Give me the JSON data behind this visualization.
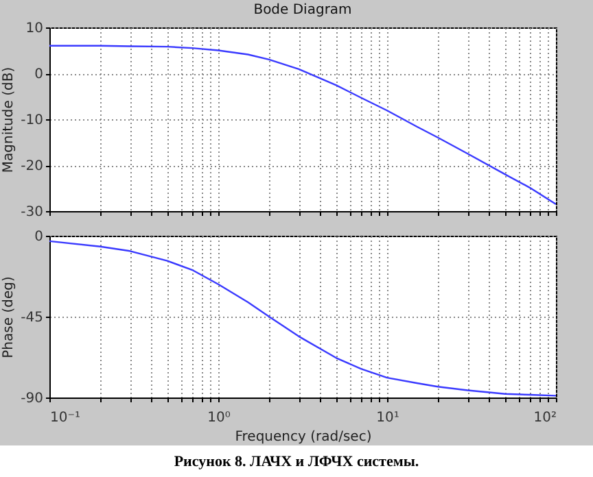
{
  "chart_data": [
    {
      "type": "line",
      "title": "Bode Diagram",
      "ylabel": "Magnitude (dB)",
      "x": [
        0.1,
        0.2,
        0.3,
        0.5,
        0.7,
        1,
        1.5,
        2,
        3,
        5,
        7,
        10,
        15,
        20,
        30,
        50,
        70,
        100
      ],
      "series": [
        {
          "color": "#3a3aff",
          "values": [
            6,
            6,
            5.9,
            5.8,
            5.5,
            5,
            4.1,
            3,
            0.9,
            -2.6,
            -5.3,
            -8.1,
            -11.6,
            -14,
            -17.5,
            -22,
            -24.9,
            -28.5
          ]
        }
      ],
      "log": "x",
      "xlim": [
        0.1,
        100
      ],
      "ylim": [
        -30,
        10
      ],
      "yticks": [
        -30,
        -20,
        -10,
        0,
        10
      ],
      "xticks": [
        {
          "value": 0.1,
          "label": null
        },
        {
          "value": 0.2,
          "label": null
        },
        {
          "value": 0.3,
          "label": null
        },
        {
          "value": 0.4,
          "label": null
        },
        {
          "value": 0.5,
          "label": null
        },
        {
          "value": 0.6,
          "label": null
        },
        {
          "value": 0.7,
          "label": null
        },
        {
          "value": 0.8,
          "label": null
        },
        {
          "value": 0.9,
          "label": null
        },
        {
          "value": 1,
          "label": null
        },
        {
          "value": 2,
          "label": null
        },
        {
          "value": 3,
          "label": null
        },
        {
          "value": 4,
          "label": null
        },
        {
          "value": 5,
          "label": null
        },
        {
          "value": 6,
          "label": null
        },
        {
          "value": 7,
          "label": null
        },
        {
          "value": 8,
          "label": null
        },
        {
          "value": 9,
          "label": null
        },
        {
          "value": 10,
          "label": null
        },
        {
          "value": 20,
          "label": null
        },
        {
          "value": 30,
          "label": null
        },
        {
          "value": 40,
          "label": null
        },
        {
          "value": 50,
          "label": null
        },
        {
          "value": 60,
          "label": null
        },
        {
          "value": 70,
          "label": null
        },
        {
          "value": 80,
          "label": null
        },
        {
          "value": 90,
          "label": null
        },
        {
          "value": 100,
          "label": null
        }
      ],
      "tick_labels": "y",
      "grid": true,
      "line_style": "solid"
    },
    {
      "type": "line",
      "xlabel": "Frequency  (rad/sec)",
      "ylabel": "Phase (deg)",
      "x": [
        0.1,
        0.2,
        0.3,
        0.5,
        0.7,
        1,
        1.5,
        2,
        3,
        5,
        7,
        10,
        15,
        20,
        30,
        50,
        70,
        100
      ],
      "series": [
        {
          "color": "#3a3aff",
          "values": [
            -3,
            -6,
            -8.5,
            -14,
            -19,
            -27,
            -37,
            -45,
            -56,
            -68,
            -74,
            -79,
            -82,
            -84,
            -86,
            -88,
            -88.5,
            -89
          ]
        }
      ],
      "log": "x",
      "xlim": [
        0.1,
        100
      ],
      "ylim": [
        -90,
        0
      ],
      "yticks": [
        -90,
        -45,
        0
      ],
      "xticks": [
        {
          "value": 0.1,
          "label": "10⁻¹"
        },
        {
          "value": 0.2,
          "label": null
        },
        {
          "value": 0.3,
          "label": null
        },
        {
          "value": 0.4,
          "label": null
        },
        {
          "value": 0.5,
          "label": null
        },
        {
          "value": 0.6,
          "label": null
        },
        {
          "value": 0.7,
          "label": null
        },
        {
          "value": 0.8,
          "label": null
        },
        {
          "value": 0.9,
          "label": null
        },
        {
          "value": 1,
          "label": "10⁰"
        },
        {
          "value": 2,
          "label": null
        },
        {
          "value": 3,
          "label": null
        },
        {
          "value": 4,
          "label": null
        },
        {
          "value": 5,
          "label": null
        },
        {
          "value": 6,
          "label": null
        },
        {
          "value": 7,
          "label": null
        },
        {
          "value": 8,
          "label": null
        },
        {
          "value": 9,
          "label": null
        },
        {
          "value": 10,
          "label": "10¹"
        },
        {
          "value": 20,
          "label": null
        },
        {
          "value": 30,
          "label": null
        },
        {
          "value": 40,
          "label": null
        },
        {
          "value": 50,
          "label": null
        },
        {
          "value": 60,
          "label": null
        },
        {
          "value": 70,
          "label": null
        },
        {
          "value": 80,
          "label": null
        },
        {
          "value": 90,
          "label": null
        },
        {
          "value": 100,
          "label": "10²"
        }
      ],
      "grid": true,
      "line_style": "solid",
      "annotations": [
        "Рисунок 8. ЛАЧХ и ЛФЧХ системы."
      ]
    }
  ]
}
